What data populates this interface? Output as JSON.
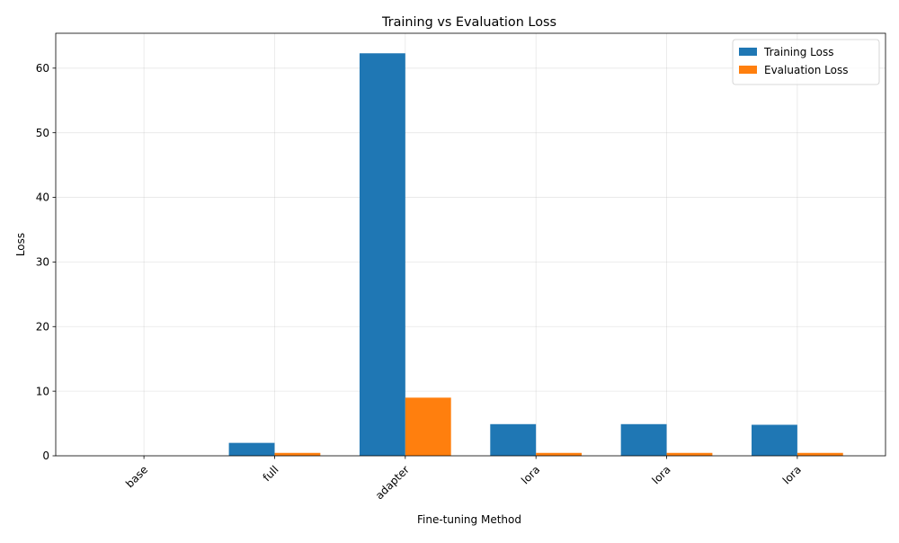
{
  "chart_data": {
    "type": "bar",
    "title": "Training vs Evaluation Loss",
    "xlabel": "Fine-tuning Method",
    "ylabel": "Loss",
    "categories": [
      "base",
      "full",
      "adapter",
      "lora",
      "lora",
      "lora"
    ],
    "series": [
      {
        "name": "Training Loss",
        "color": "#1f77b4",
        "values": [
          0,
          2.0,
          62.3,
          4.9,
          4.9,
          4.8
        ]
      },
      {
        "name": "Evaluation Loss",
        "color": "#ff7f0e",
        "values": [
          0,
          0.45,
          9.0,
          0.45,
          0.45,
          0.45
        ]
      }
    ],
    "ylim": [
      0,
      65.4
    ],
    "yticks": [
      0,
      10,
      20,
      30,
      40,
      50,
      60
    ],
    "grid": true,
    "legend_position": "top-right"
  }
}
